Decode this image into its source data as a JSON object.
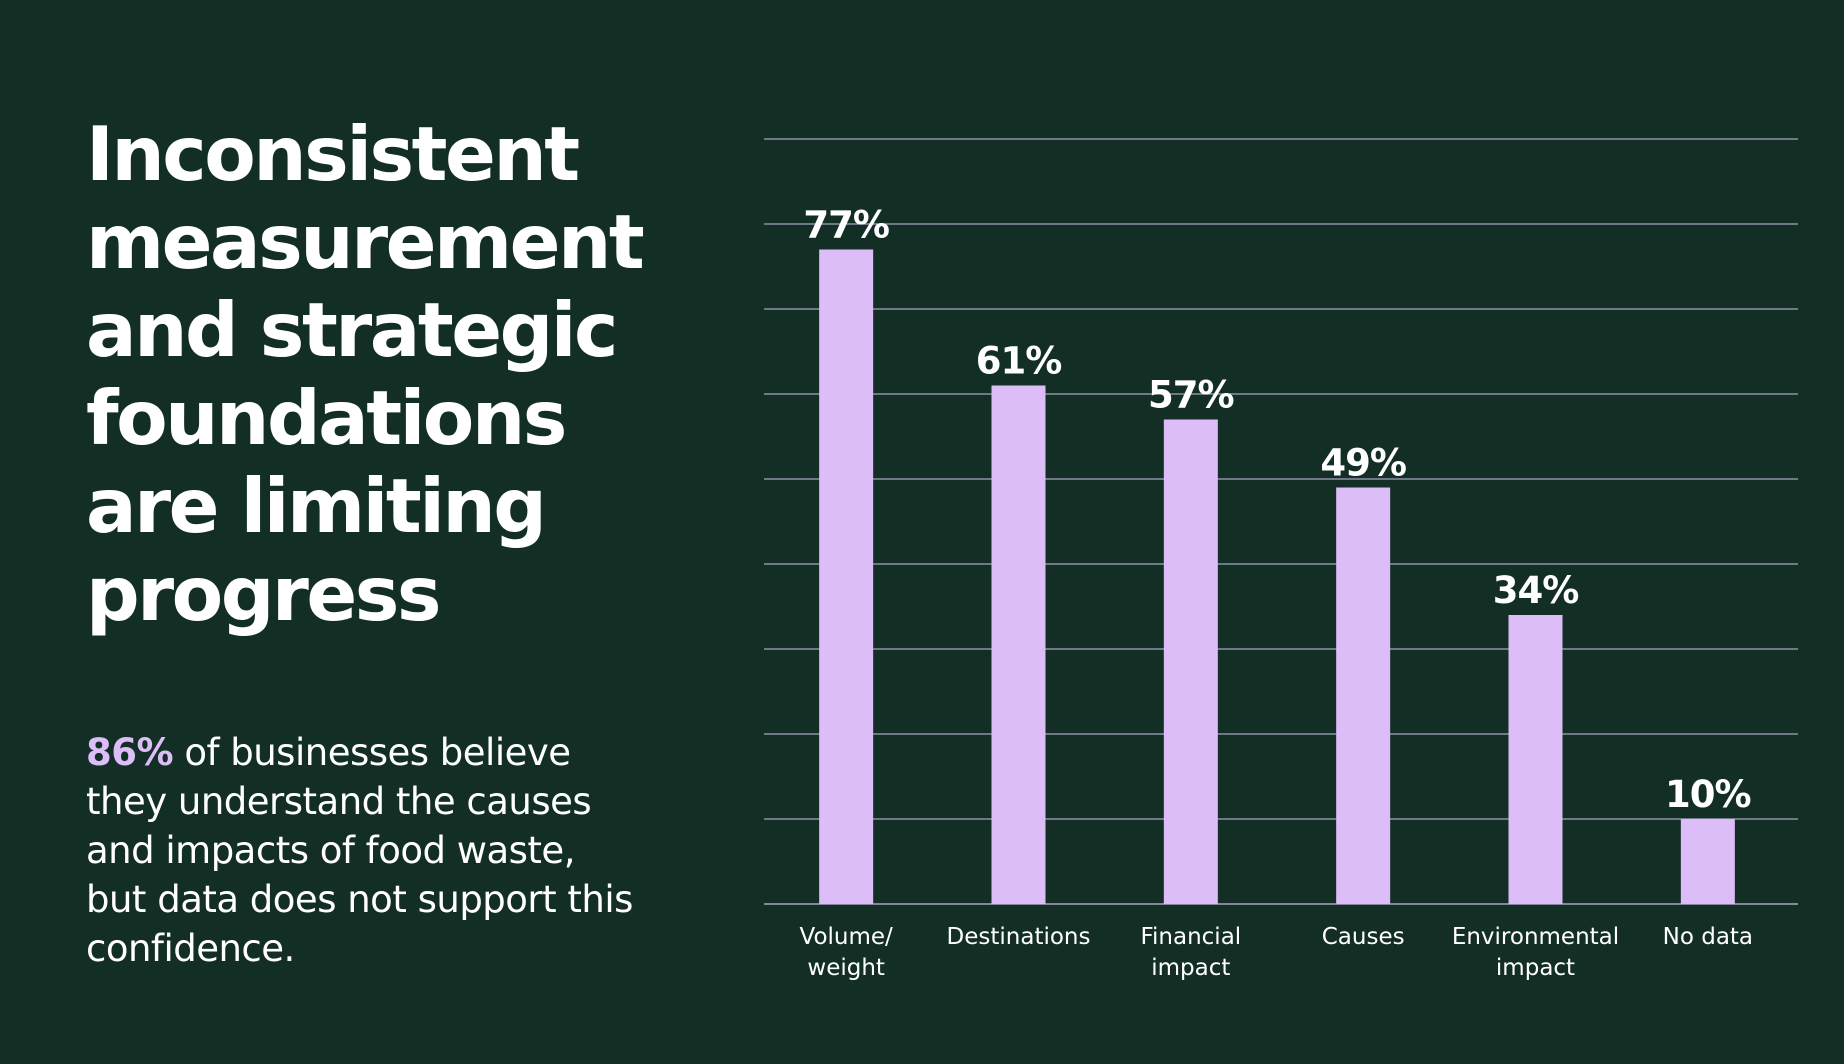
{
  "headline": {
    "lines": [
      "Inconsistent",
      "measurement",
      "and strategic",
      "foundations",
      "are limiting",
      "progress"
    ]
  },
  "body": {
    "highlight": "86%",
    "rest": " of businesses believe they understand the causes and impacts of food waste, but data does not support this confidence."
  },
  "colors": {
    "background": "#132f25",
    "bar": "#dcbdf7",
    "highlight": "#dcbdf7",
    "gridline": "#a9a3c4",
    "text": "#ffffff"
  },
  "chart_data": {
    "type": "bar",
    "categories": [
      [
        "Volume/",
        "weight"
      ],
      [
        "Destinations"
      ],
      [
        "Financial",
        "impact"
      ],
      [
        "Causes"
      ],
      [
        "Environmental",
        "impact"
      ],
      [
        "No data"
      ]
    ],
    "values": [
      77,
      61,
      57,
      49,
      34,
      10
    ],
    "value_labels": [
      "77%",
      "61%",
      "57%",
      "49%",
      "34%",
      "10%"
    ],
    "ylim": [
      0,
      90
    ],
    "grid": true,
    "grid_step": 10,
    "title": "",
    "xlabel": "",
    "ylabel": ""
  }
}
